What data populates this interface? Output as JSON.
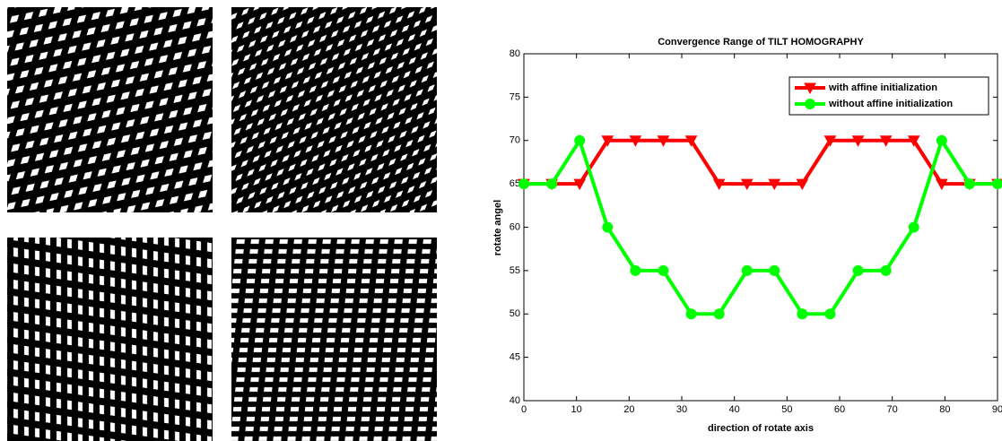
{
  "chart_data": {
    "type": "line",
    "title": "Convergence Range of TILT HOMOGRAPHY",
    "x_label": "direction of rotate axis",
    "y_label": "rotate angel",
    "x": [
      0,
      5.3,
      10.6,
      15.9,
      21.2,
      26.5,
      31.8,
      37.1,
      42.4,
      47.6,
      52.9,
      58.2,
      63.5,
      68.8,
      74.1,
      79.4,
      84.7,
      90
    ],
    "series": [
      {
        "name": "with affine initialization",
        "color": "#ff0000",
        "marker": "triangle-down",
        "values": [
          65,
          65,
          65,
          70,
          70,
          70,
          70,
          65,
          65,
          65,
          65,
          70,
          70,
          70,
          70,
          65,
          65,
          65
        ]
      },
      {
        "name": "without affine initialization",
        "color": "#00ff00",
        "marker": "circle",
        "values": [
          65,
          65,
          70,
          60,
          55,
          55,
          50,
          50,
          55,
          55,
          50,
          50,
          55,
          55,
          60,
          70,
          65,
          65
        ]
      }
    ],
    "xlim": [
      0,
      90
    ],
    "xticks": [
      0,
      10,
      20,
      30,
      40,
      50,
      60,
      70,
      80,
      90
    ],
    "ylim": [
      40,
      80
    ],
    "yticks": [
      40,
      45,
      50,
      55,
      60,
      65,
      70,
      75,
      80
    ],
    "legend": "upper right"
  }
}
